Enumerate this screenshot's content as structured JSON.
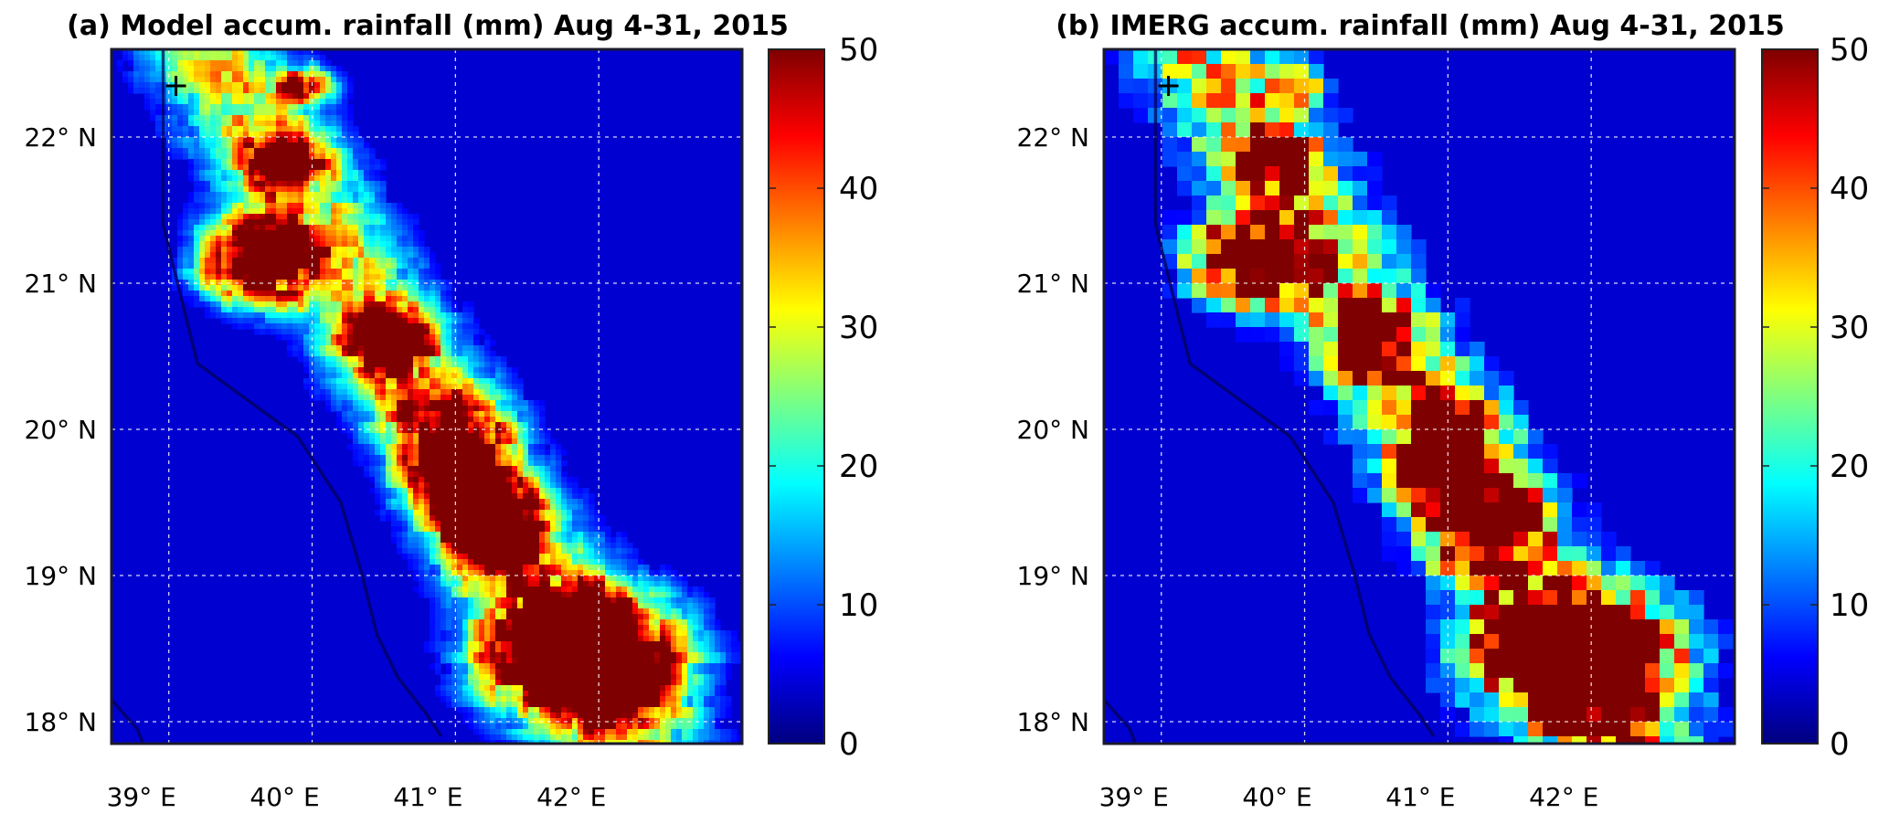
{
  "panels": [
    {
      "id": "a",
      "title": "(a) Model accum. rainfall (mm) Aug 4-31, 2015",
      "lon_ticks": [
        "39° E",
        "40° E",
        "41° E",
        "42° E"
      ],
      "lat_ticks": [
        "22° N",
        "21° N",
        "20° N",
        "19° N",
        "18° N"
      ],
      "colorbar_ticks": [
        "50",
        "40",
        "30",
        "20",
        "10",
        "0"
      ],
      "style": "smooth"
    },
    {
      "id": "b",
      "title": "(b) IMERG accum. rainfall (mm) Aug 4-31, 2015",
      "lon_ticks": [
        "39° E",
        "40° E",
        "41° E",
        "42° E"
      ],
      "lat_ticks": [
        "22° N",
        "21° N",
        "20° N",
        "19° N",
        "18° N"
      ],
      "colorbar_ticks": [
        "50",
        "40",
        "30",
        "20",
        "10",
        "0"
      ],
      "style": "pixelated"
    }
  ],
  "map": {
    "lon_range": [
      38.6,
      43.0
    ],
    "lat_range": [
      17.85,
      22.6
    ],
    "lon_grid": [
      39,
      40,
      41,
      42
    ],
    "lat_grid": [
      18,
      19,
      20,
      21,
      22
    ],
    "marker": {
      "symbol": "+",
      "lon": 39.05,
      "lat": 22.35
    },
    "coastline": [
      [
        38.96,
        22.6
      ],
      [
        38.96,
        21.4
      ],
      [
        39.2,
        20.45
      ],
      [
        39.55,
        20.2
      ],
      [
        39.9,
        19.95
      ],
      [
        40.2,
        19.5
      ],
      [
        40.35,
        19.0
      ],
      [
        40.45,
        18.6
      ],
      [
        40.6,
        18.3
      ],
      [
        40.8,
        18.05
      ],
      [
        40.9,
        17.9
      ]
    ],
    "coastline_sw": [
      [
        38.6,
        18.15
      ],
      [
        38.78,
        17.95
      ],
      [
        38.82,
        17.85
      ]
    ]
  },
  "colorscale": {
    "name": "jet",
    "min": 0,
    "max": 50,
    "stops": [
      "#00007f",
      "#0000ff",
      "#007fff",
      "#00ffff",
      "#7fff7f",
      "#ffff00",
      "#ff7f00",
      "#ff0000",
      "#7f0000"
    ]
  }
}
